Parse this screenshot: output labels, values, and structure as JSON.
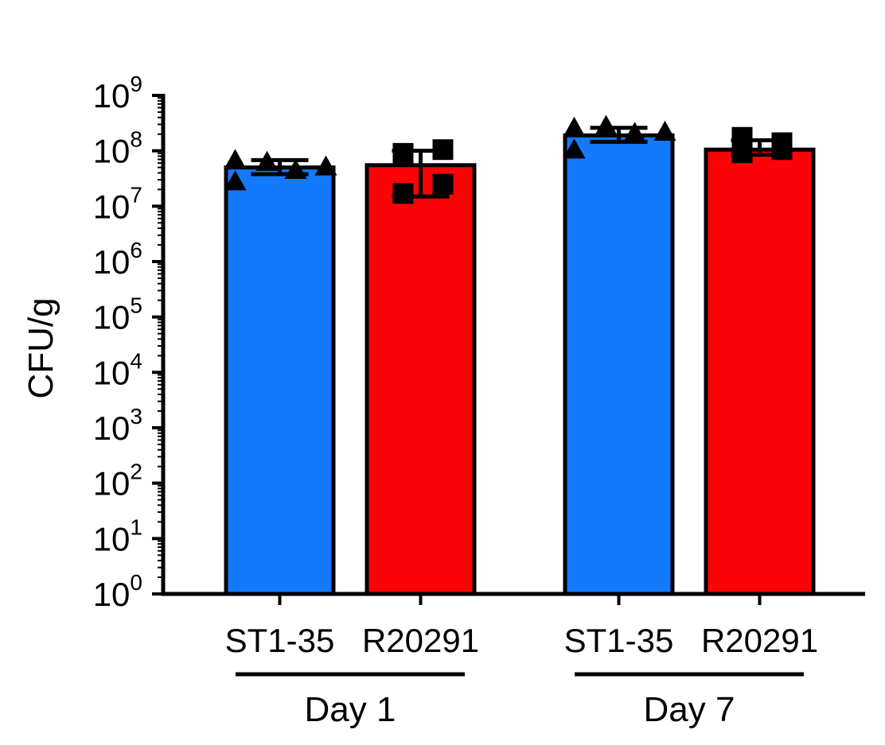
{
  "chart_data": {
    "type": "bar",
    "yscale": "log",
    "ylabel": "CFU/g",
    "ylim": [
      1,
      1000000000
    ],
    "ytick_base": "10",
    "yticks_exponents": [
      "0",
      "1",
      "2",
      "3",
      "4",
      "5",
      "6",
      "7",
      "8",
      "9"
    ],
    "grid": false,
    "legend": "none",
    "groups": [
      {
        "label": "Day 1",
        "bars": [
          {
            "category": "ST1-35",
            "value": 50000000,
            "error": [
              38000000,
              68000000
            ],
            "marker": "triangle",
            "color": "#1479fb",
            "points": [
              68000000,
              28000000,
              63000000,
              45000000,
              52000000
            ]
          },
          {
            "category": "R20291",
            "value": 55000000,
            "error": [
              15000000,
              100000000
            ],
            "marker": "square",
            "color": "#fc0307",
            "points": [
              90000000,
              17000000,
              105000000,
              25000000
            ]
          }
        ]
      },
      {
        "label": "Day 7",
        "bars": [
          {
            "category": "ST1-35",
            "value": 190000000,
            "error": [
              145000000,
              260000000
            ],
            "marker": "triangle",
            "color": "#1479fb",
            "points": [
              105000000,
              260000000,
              280000000,
              210000000,
              220000000
            ]
          },
          {
            "category": "R20291",
            "value": 105000000,
            "error": [
              85000000,
              155000000
            ],
            "marker": "square",
            "color": "#fc0307",
            "points": [
              92000000,
              175000000,
              105000000,
              140000000
            ]
          }
        ]
      }
    ]
  }
}
